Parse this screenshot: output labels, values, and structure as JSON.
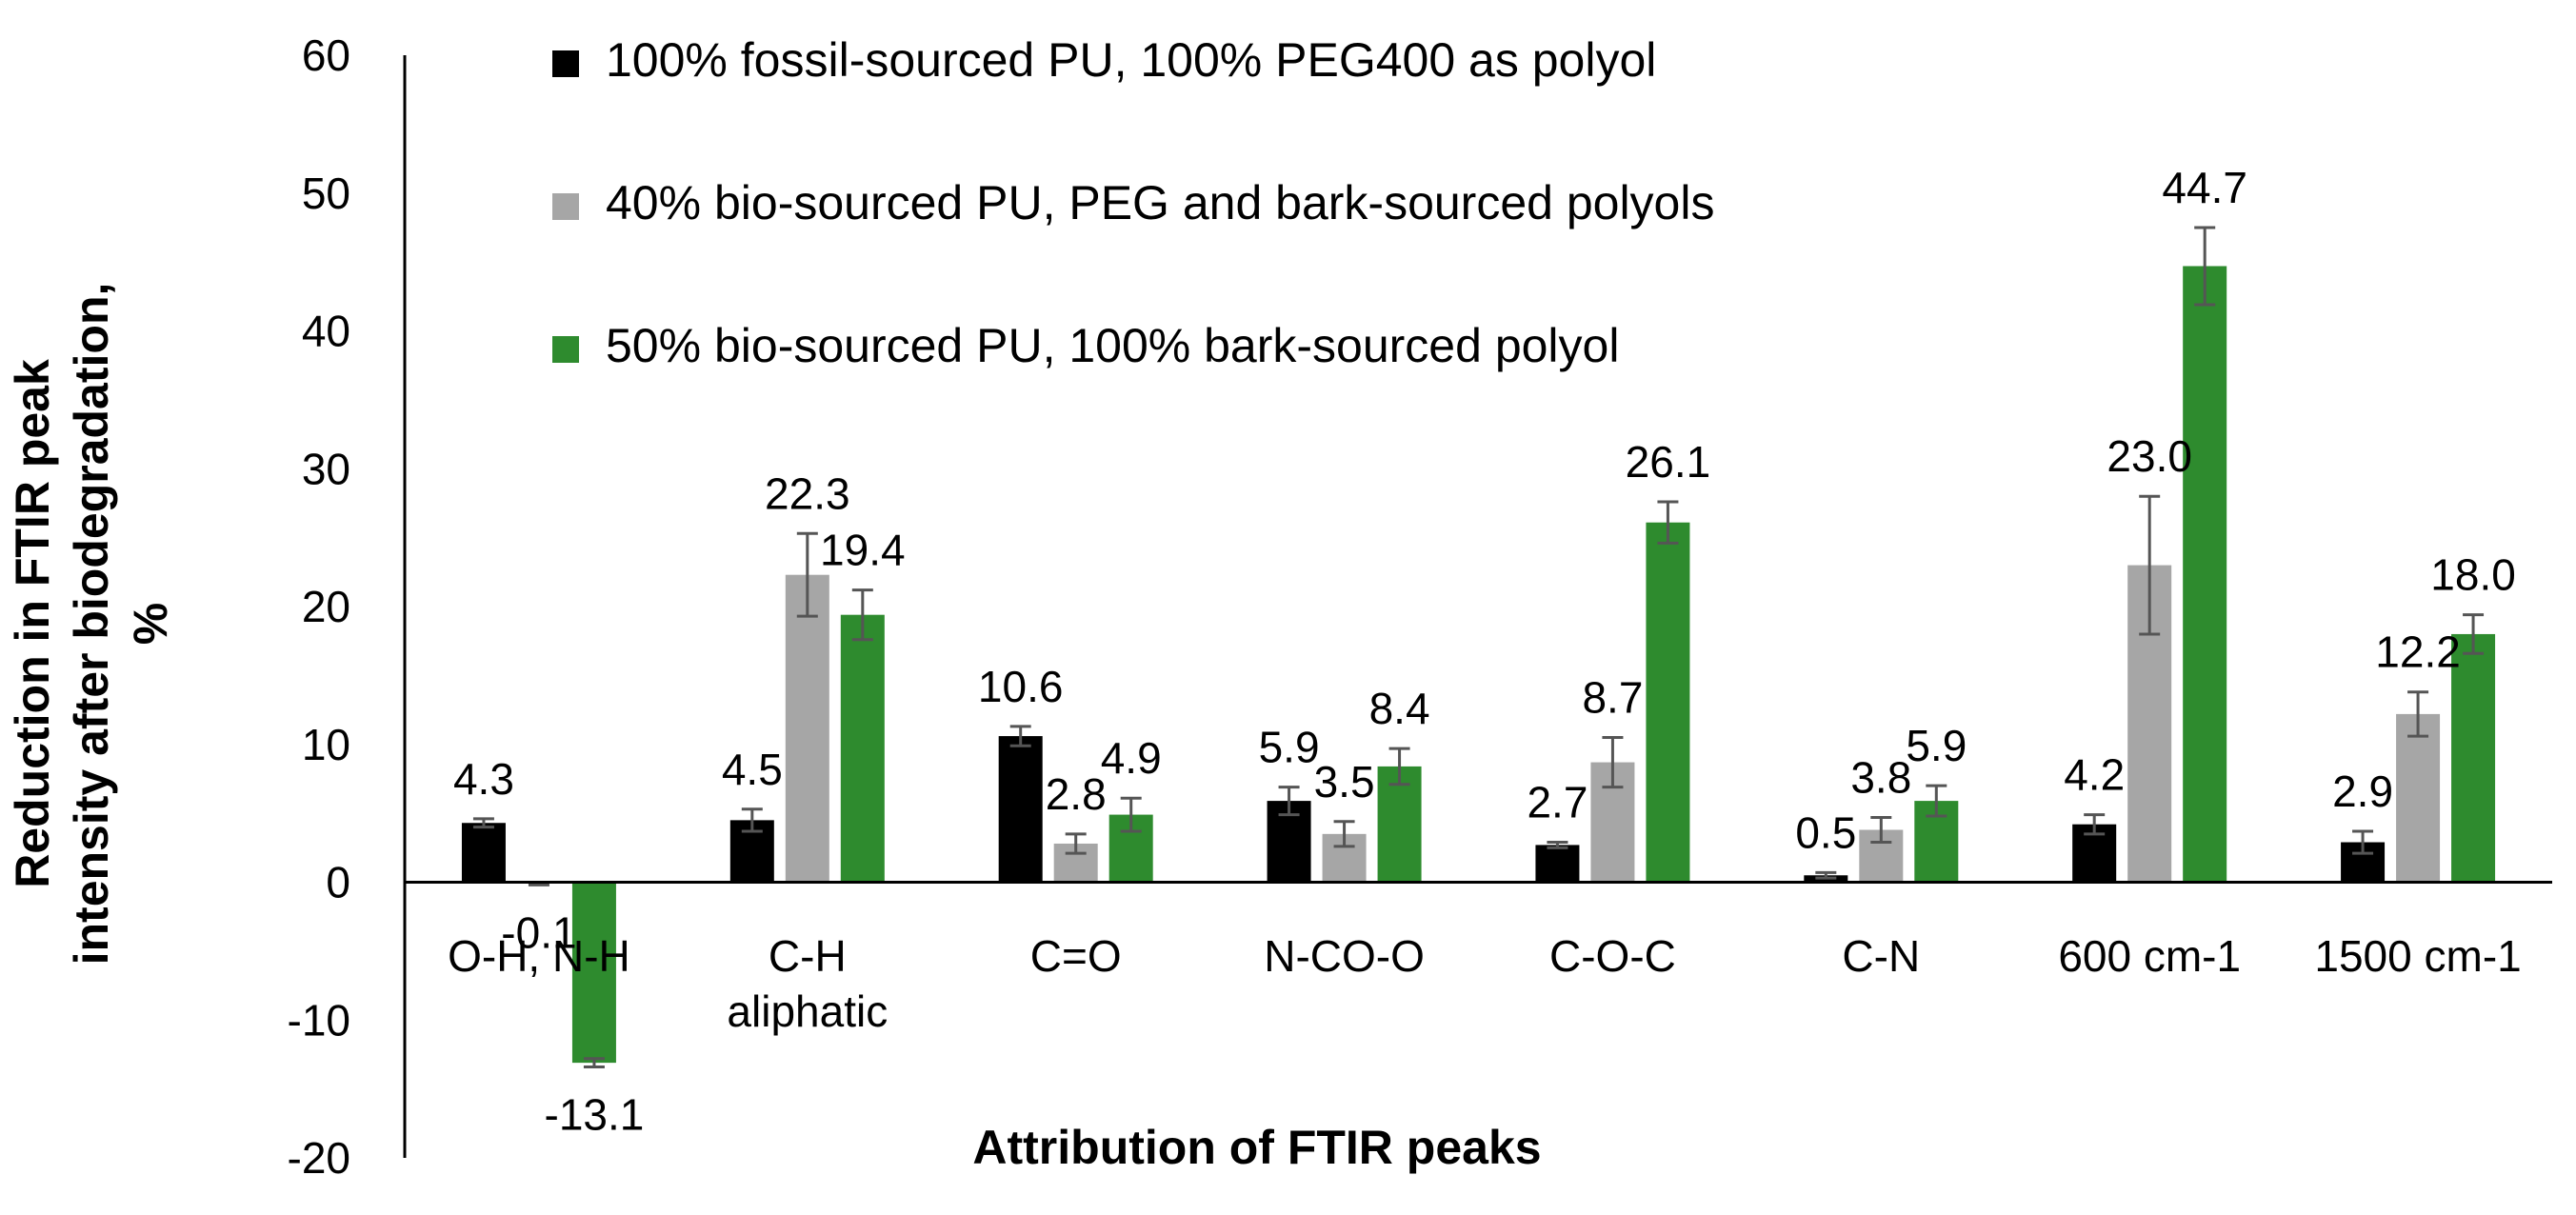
{
  "chart_data": {
    "type": "bar",
    "title": "",
    "xlabel": "Attribution of FTIR peaks",
    "ylabel_lines": [
      "Reduction in FTIR peak",
      "intensity after biodegradation,",
      "%"
    ],
    "ylim": [
      -20,
      60
    ],
    "yticks": [
      -20,
      -10,
      0,
      10,
      20,
      30,
      40,
      50,
      60
    ],
    "grid": false,
    "legend_position": "top",
    "categories": [
      [
        "O-H, N-H"
      ],
      [
        "C-H",
        "aliphatic"
      ],
      [
        "C=O"
      ],
      [
        "N-CO-O"
      ],
      [
        "C-O-C"
      ],
      [
        "C-N"
      ],
      [
        "600 cm-1"
      ],
      [
        "1500 cm-1"
      ]
    ],
    "series": [
      {
        "name": "100% fossil-sourced PU, 100% PEG400 as polyol",
        "color": "#000000",
        "values": [
          4.3,
          4.5,
          10.6,
          5.9,
          2.7,
          0.5,
          4.2,
          2.9
        ],
        "labels": [
          "4.3",
          "4.5",
          "10.6",
          "5.9",
          "2.7",
          "0.5",
          "4.2",
          "2.9"
        ],
        "errors": [
          0.3,
          0.8,
          0.7,
          1.0,
          0.2,
          0.2,
          0.7,
          0.8
        ]
      },
      {
        "name": "40% bio-sourced PU, PEG and bark-sourced polyols",
        "color": "#a6a6a6",
        "values": [
          -0.1,
          22.3,
          2.8,
          3.5,
          8.7,
          3.8,
          23.0,
          12.2
        ],
        "labels": [
          "-0.1",
          "22.3",
          "2.8",
          "3.5",
          "8.7",
          "3.8",
          "23.0",
          "12.2"
        ],
        "errors": [
          0.1,
          3.0,
          0.7,
          0.9,
          1.8,
          0.9,
          5.0,
          1.6
        ]
      },
      {
        "name": "50% bio-sourced PU, 100% bark-sourced polyol",
        "color": "#2e8b2e",
        "values": [
          -13.1,
          19.4,
          4.9,
          8.4,
          26.1,
          5.9,
          44.7,
          18.0
        ],
        "labels": [
          "-13.1",
          "19.4",
          "4.9",
          "8.4",
          "26.1",
          "5.9",
          "44.7",
          "18.0"
        ],
        "errors": [
          0.3,
          1.8,
          1.2,
          1.3,
          1.5,
          1.1,
          2.8,
          1.4
        ]
      }
    ]
  }
}
